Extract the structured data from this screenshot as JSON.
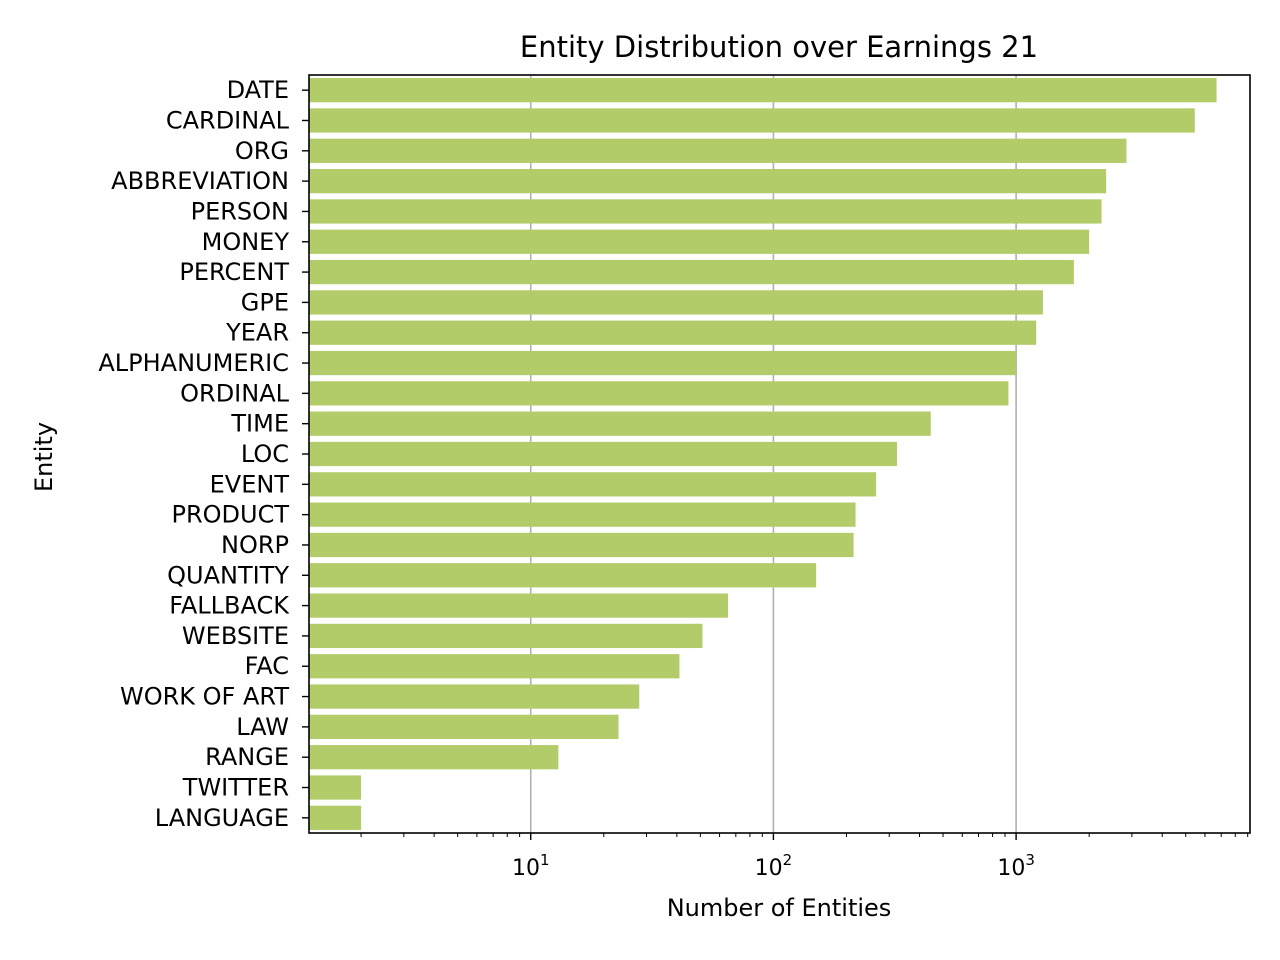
{
  "chart_data": {
    "type": "bar",
    "orientation": "horizontal",
    "title": "Entity Distribution over Earnings 21",
    "xlabel": "Number of Entities",
    "ylabel": "Entity",
    "xscale": "log",
    "xlim": [
      1.22,
      9200
    ],
    "grid": "x-major",
    "bar_color": "#b3cc6a",
    "x_ticks": [
      {
        "value": 10,
        "base": "10",
        "exp": "1"
      },
      {
        "value": 100,
        "base": "10",
        "exp": "2"
      },
      {
        "value": 1000,
        "base": "10",
        "exp": "3"
      }
    ],
    "categories": [
      "DATE",
      "CARDINAL",
      "ORG",
      "ABBREVIATION",
      "PERSON",
      "MONEY",
      "PERCENT",
      "GPE",
      "YEAR",
      "ALPHANUMERIC",
      "ORDINAL",
      "TIME",
      "LOC",
      "EVENT",
      "PRODUCT",
      "NORP",
      "QUANTITY",
      "FALLBACK",
      "WEBSITE",
      "FAC",
      "WORK OF ART",
      "LAW",
      "RANGE",
      "TWITTER",
      "LANGUAGE"
    ],
    "values": [
      6700,
      5450,
      2850,
      2350,
      2250,
      2000,
      1730,
      1290,
      1210,
      1000,
      930,
      445,
      323,
      265,
      218,
      214,
      150,
      65,
      51,
      41,
      28,
      23,
      13,
      2,
      2
    ]
  }
}
